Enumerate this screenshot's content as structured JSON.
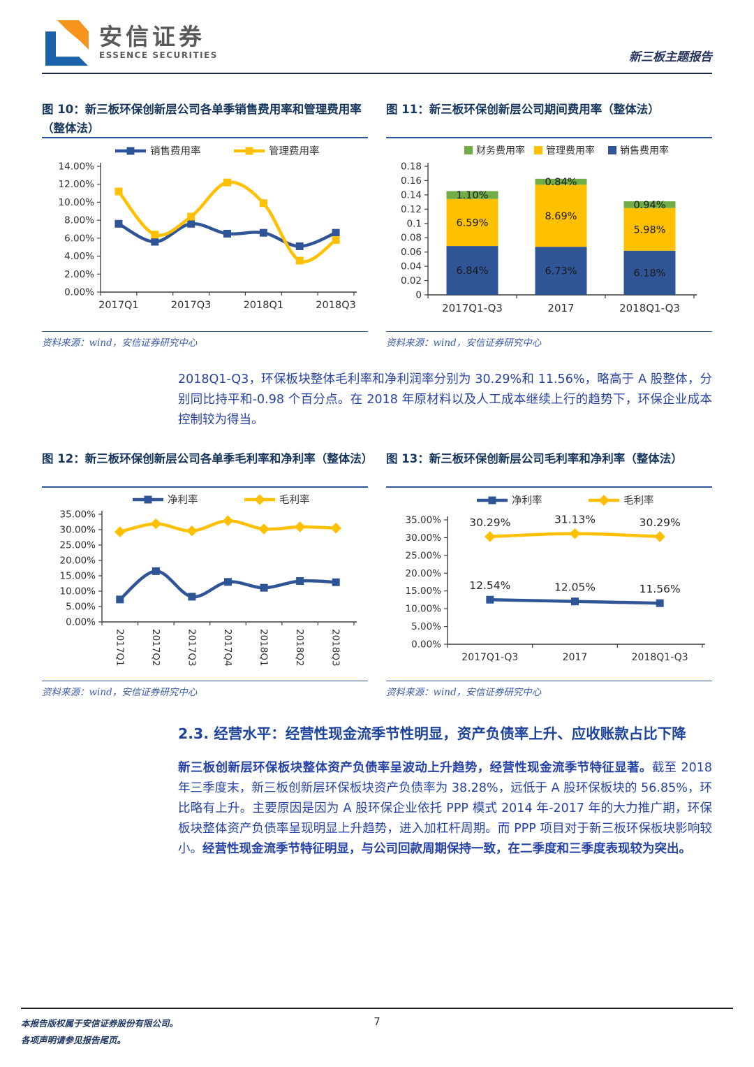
{
  "header": {
    "logo_cn": "安信证券",
    "logo_en": "ESSENCE SECURITIES",
    "report_type": "新三板主题报告"
  },
  "figures": {
    "fig10": {
      "title": "图 10：新三板环保创新层公司各单季销售费用率和管理费用率（整体法）",
      "source": "资料来源：wind，安信证券研究中心"
    },
    "fig11": {
      "title": "图 11：新三板环保创新层公司期间费用率（整体法）",
      "source": "资料来源：wind，安信证券研究中心"
    },
    "fig12": {
      "title": "图 12：新三板环保创新层公司各单季毛利率和净利率（整体法）",
      "source": "资料来源：wind，安信证券研究中心"
    },
    "fig13": {
      "title": "图 13：新三板环保创新层公司毛利率和净利率（整体法）",
      "source": "资料来源：wind，安信证券研究中心"
    }
  },
  "paragraphs": {
    "p1": "2018Q1-Q3，环保板块整体毛利率和净利润率分别为 30.29%和 11.56%，略高于 A 股整体，分别同比持平和-0.98 个百分点。在 2018 年原材料以及人工成本继续上行的趋势下，环保企业成本控制较为得当。",
    "p2_seg1": "新三板创新层环保板块整体资产负债率呈波动上升趋势，经营性现金流季节特征显著。",
    "p2_seg2": "截至 2018 年三季度末，新三板创新层环保板块资产负债率为 38.28%，远低于 A 股环保板块的 56.85%，环比略有上升。主要原因是因为 A 股环保企业依托 PPP 模式 2014 年-2017 年的大力推广期，环保板块整体资产负债率呈现明显上升趋势，进入加杠杆周期。而 PPP 项目对于新三板环保板块影响较小。",
    "p2_seg3": "经营性现金流季节特征明显，与公司回款周期保持一致，在二季度和三季度表现较为突出。"
  },
  "section": {
    "heading": "2.3. 经营水平：经营性现金流季节性明显，资产负债率上升、应收账款占比下降"
  },
  "footer": {
    "line1": "本报告版权属于安信证券股份有限公司。",
    "line2": "各项声明请参见报告尾页。",
    "page": "7"
  },
  "colors": {
    "blue": "#2F5597",
    "yellow": "#FFC000",
    "green": "#70AD47",
    "navy": "#17365D"
  },
  "chart_data": [
    {
      "id": "fig10",
      "type": "line",
      "categories": [
        "2017Q1",
        "2017Q2",
        "2017Q3",
        "2017Q4",
        "2018Q1",
        "2018Q2",
        "2018Q3"
      ],
      "xtick_indices": [
        0,
        2,
        4,
        6
      ],
      "xtick_labels": [
        "2017Q1",
        "2017Q3",
        "2018Q1",
        "2018Q3"
      ],
      "ylim": [
        0,
        14
      ],
      "ystep": 2,
      "yfmt": "pct2",
      "series": [
        {
          "name": "销售费用率",
          "color": "#2F5597",
          "marker": "square",
          "values": [
            7.6,
            5.6,
            7.6,
            6.5,
            6.6,
            5.1,
            6.6
          ]
        },
        {
          "name": "管理费用率",
          "color": "#FFC000",
          "marker": "square",
          "values": [
            11.2,
            6.4,
            8.4,
            12.2,
            9.9,
            3.5,
            5.8
          ]
        }
      ]
    },
    {
      "id": "fig11",
      "type": "stacked-bar",
      "categories": [
        "2017Q1-Q3",
        "2017",
        "2018Q1-Q3"
      ],
      "ylim": [
        0,
        0.18
      ],
      "ystep": 0.02,
      "yfmt": "raw",
      "unit_scale": 0.01,
      "series": [
        {
          "name": "财务费用率",
          "color": "#70AD47",
          "values": [
            1.1,
            0.84,
            0.94
          ]
        },
        {
          "name": "管理费用率",
          "color": "#FFC000",
          "values": [
            6.59,
            8.69,
            5.98
          ]
        },
        {
          "name": "销售费用率",
          "color": "#2F5597",
          "values": [
            6.84,
            6.73,
            6.18
          ]
        }
      ],
      "stack_bottom_up": [
        "销售费用率",
        "管理费用率",
        "财务费用率"
      ],
      "bar_labels": true
    },
    {
      "id": "fig12",
      "type": "line",
      "categories": [
        "2017Q1",
        "2017Q2",
        "2017Q3",
        "2017Q4",
        "2018Q1",
        "2018Q2",
        "2018Q3"
      ],
      "rotate_xticks": true,
      "ylim": [
        0,
        35
      ],
      "ystep": 5,
      "yfmt": "pct2",
      "series": [
        {
          "name": "净利率",
          "color": "#2F5597",
          "marker": "square",
          "values": [
            7.3,
            16.5,
            8.2,
            13.0,
            11.1,
            13.3,
            12.9
          ]
        },
        {
          "name": "毛利率",
          "color": "#FFC000",
          "marker": "diamond",
          "values": [
            29.3,
            31.9,
            29.6,
            32.9,
            30.2,
            30.9,
            30.5
          ]
        }
      ]
    },
    {
      "id": "fig13",
      "type": "line",
      "categories": [
        "2017Q1-Q3",
        "2017",
        "2018Q1-Q3"
      ],
      "ylim": [
        0,
        35
      ],
      "ystep": 5,
      "yfmt": "pct2",
      "point_labels": true,
      "series": [
        {
          "name": "净利率",
          "color": "#2F5597",
          "marker": "square",
          "values": [
            12.54,
            12.05,
            11.56
          ]
        },
        {
          "name": "毛利率",
          "color": "#FFC000",
          "marker": "diamond",
          "values": [
            30.29,
            31.13,
            30.29
          ]
        }
      ]
    }
  ]
}
